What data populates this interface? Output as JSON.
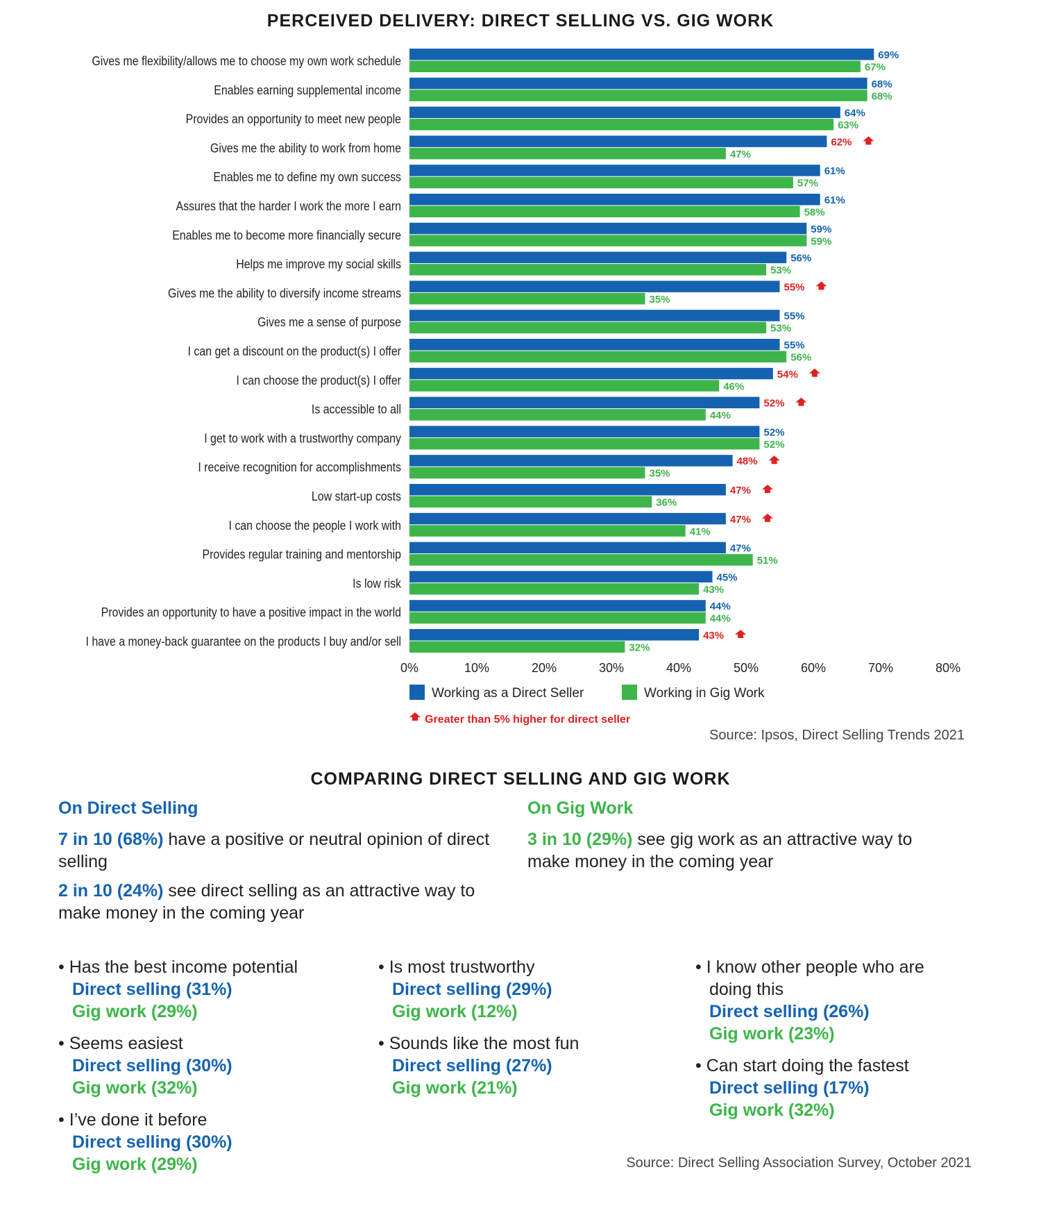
{
  "colors": {
    "direct": "#1563b0",
    "gig": "#3db54a",
    "highlight": "#e02020"
  },
  "chart_data": {
    "type": "bar",
    "orientation": "horizontal",
    "title": "PERCEIVED DELIVERY: DIRECT SELLING VS. GIG WORK",
    "categories": [
      "Gives me flexibility/allows me to choose my own work schedule",
      "Enables earning supplemental income",
      "Provides an opportunity to meet new people",
      "Gives me the ability to work from home",
      "Enables me to define my own success",
      "Assures that the harder I work the more I earn",
      "Enables me to become more financially secure",
      "Helps me improve my social skills",
      "Gives me the ability to diversify income streams",
      "Gives me a sense of purpose",
      "I can get a discount on the product(s) I offer",
      "I can choose the product(s) I offer",
      "Is accessible to all",
      "I get to work with a trustworthy company",
      "I receive recognition for accomplishments",
      "Low start-up costs",
      "I can choose the people I work with",
      "Provides regular training and mentorship",
      "Is low risk",
      "Provides an opportunity to have a positive impact in the world",
      "I have a money-back guarantee on the products I buy and/or sell"
    ],
    "series": [
      {
        "name": "Working as a Direct Seller",
        "values": [
          69,
          68,
          64,
          62,
          61,
          61,
          59,
          56,
          55,
          55,
          55,
          54,
          52,
          52,
          48,
          47,
          47,
          47,
          45,
          44,
          43
        ],
        "labels": [
          "69%",
          "68%",
          "64%",
          "62%",
          "61%",
          "61%",
          "59%",
          "56%",
          "55%",
          "55%",
          "55%",
          "54%",
          "52%",
          "52%",
          "48%",
          "47%",
          "47%",
          "47%",
          "45%",
          "44%",
          "43%"
        ]
      },
      {
        "name": "Working in Gig Work",
        "values": [
          67,
          68,
          63,
          47,
          57,
          58,
          59,
          53,
          35,
          53,
          56,
          46,
          44,
          52,
          35,
          36,
          41,
          51,
          43,
          44,
          32
        ],
        "labels": [
          "67%",
          "68%",
          "63%",
          "47%",
          "57%",
          "58%",
          "59%",
          "53%",
          "35%",
          "53%",
          "56%",
          "46%",
          "44%",
          "52%",
          "35%",
          "36%",
          "41%",
          "51%",
          "43%",
          "44%",
          "32%"
        ]
      }
    ],
    "highlighted": [
      false,
      false,
      false,
      true,
      false,
      false,
      false,
      false,
      true,
      false,
      false,
      true,
      true,
      false,
      true,
      true,
      true,
      false,
      false,
      false,
      true
    ],
    "xlim": [
      0,
      80
    ],
    "xticks": [
      "0%",
      "10%",
      "20%",
      "30%",
      "40%",
      "50%",
      "60%",
      "70%",
      "80%"
    ],
    "legend": [
      "Working as a Direct Seller",
      "Working in Gig Work"
    ],
    "highlight_note": "Greater than 5% higher for direct seller",
    "source": "Source: Ipsos, Direct Selling Trends 2021"
  },
  "comparison": {
    "title": "COMPARING DIRECT SELLING AND GIG WORK",
    "direct_head": "On Direct Selling",
    "gig_head": "On Gig Work",
    "direct_stat1_bold": "7 in 10 (68%)",
    "direct_stat1_rest": " have a positive or neutral opinion of direct selling",
    "direct_stat2_bold": "2 in 10 (24%)",
    "direct_stat2_rest": " see direct selling as an attractive way to make money in the coming year",
    "gig_stat1_bold": "3 in 10 (29%)",
    "gig_stat1_rest": " see gig work as an attractive way to make money in the coming year",
    "bullets": [
      {
        "q": "• Has the best income potential",
        "d": "Direct selling (31%)",
        "g": "Gig work (29%)"
      },
      {
        "q": "• Seems easiest",
        "d": "Direct selling (30%)",
        "g": "Gig work (32%)"
      },
      {
        "q": "• I’ve done it before",
        "d": "Direct selling (30%)",
        "g": "Gig work (29%)"
      },
      {
        "q": "• Is most trustworthy",
        "d": "Direct selling (29%)",
        "g": "Gig work (12%)"
      },
      {
        "q": "• Sounds like the most fun",
        "d": "Direct selling (27%)",
        "g": "Gig work (21%)"
      },
      {
        "q": "• I know other people who are doing this",
        "d": "Direct selling (26%)",
        "g": "Gig work (23%)"
      },
      {
        "q": "• Can start doing the fastest",
        "d": "Direct selling (17%)",
        "g": "Gig work (32%)"
      }
    ],
    "source": "Source: Direct Selling Association Survey, October 2021"
  }
}
